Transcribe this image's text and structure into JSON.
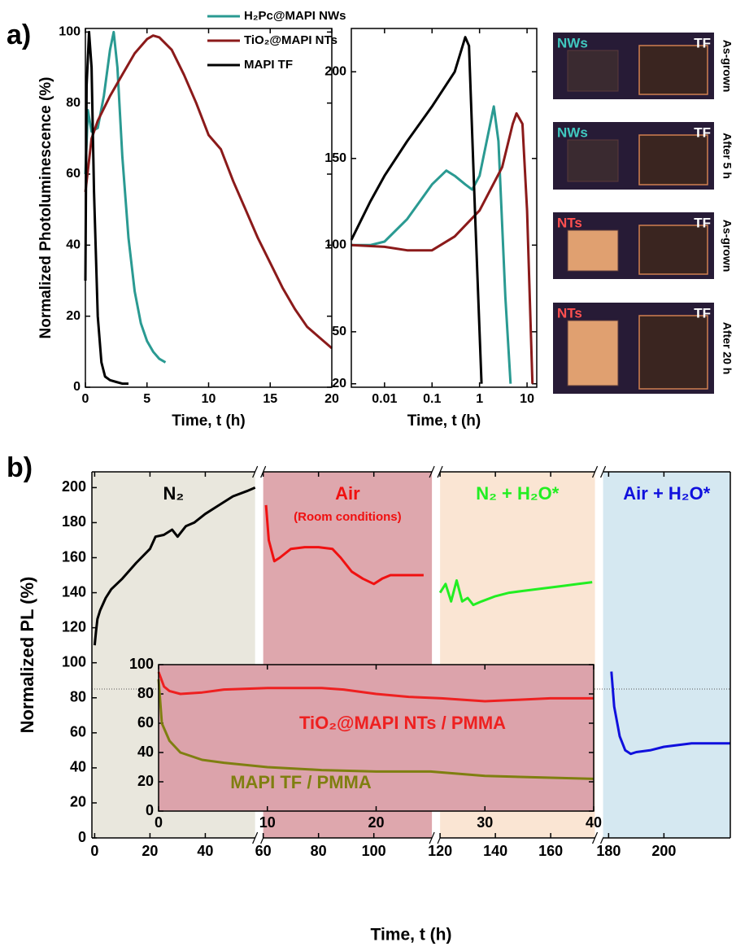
{
  "panel_labels": [
    "a)",
    "b)"
  ],
  "chart_data": [
    {
      "type": "line",
      "xlabel": "Time, t (h)",
      "ylabel": "Normalized Photoluminescence (%)",
      "xlim": [
        0,
        20
      ],
      "ylim": [
        0,
        101
      ],
      "xticks": [
        0,
        5,
        10,
        15,
        20
      ],
      "yticks": [
        0,
        20,
        40,
        60,
        80,
        100
      ],
      "legend": "top",
      "series": [
        {
          "name": "H₂Pc@MAPI NWs",
          "color": "#2a9a92",
          "x": [
            0,
            0.2,
            0.5,
            1,
            1.5,
            2,
            2.3,
            2.6,
            3,
            3.5,
            4,
            4.5,
            5,
            5.5,
            6,
            6.5
          ],
          "values": [
            60,
            78,
            72,
            73,
            82,
            95,
            100,
            90,
            65,
            42,
            27,
            18,
            13,
            10,
            8,
            7
          ]
        },
        {
          "name": "TiO₂@MAPI NTs",
          "color": "#8b1a1a",
          "x": [
            0,
            0.5,
            1,
            2,
            3,
            4,
            5,
            5.5,
            6,
            7,
            8,
            9,
            10,
            11,
            12,
            13,
            14,
            15,
            16,
            17,
            18,
            19,
            20
          ],
          "values": [
            55,
            70,
            75,
            82,
            88,
            94,
            98,
            99,
            98.5,
            95,
            88,
            80,
            71,
            67,
            58,
            50,
            42,
            35,
            28,
            22,
            17,
            14,
            11
          ]
        },
        {
          "name": "MAPI TF",
          "color": "#000000",
          "x": [
            0,
            0.1,
            0.3,
            0.5,
            0.7,
            1,
            1.3,
            1.6,
            2,
            2.5,
            3,
            3.5
          ],
          "values": [
            30,
            85,
            100,
            90,
            55,
            20,
            7,
            3,
            2,
            1.5,
            1,
            1
          ]
        }
      ]
    },
    {
      "type": "line",
      "xscale": "log",
      "xlabel": "Time, t (h)",
      "xlim": [
        0.002,
        16
      ],
      "ylim": [
        18,
        225
      ],
      "xticks": [
        0.01,
        0.1,
        1,
        10
      ],
      "yticks": [
        20,
        50,
        100,
        150,
        200
      ],
      "series": [
        {
          "color": "#2a9a92",
          "x": [
            0.002,
            0.005,
            0.01,
            0.03,
            0.1,
            0.2,
            0.3,
            0.5,
            0.7,
            1,
            2,
            2.5,
            3.5,
            4.5
          ],
          "values": [
            100,
            100,
            102,
            115,
            135,
            143,
            140,
            135,
            132,
            140,
            180,
            160,
            70,
            20
          ]
        },
        {
          "color": "#8b1a1a",
          "x": [
            0.002,
            0.01,
            0.03,
            0.1,
            0.3,
            1,
            3,
            5,
            6,
            8,
            10,
            13
          ],
          "values": [
            100,
            99,
            97,
            97,
            105,
            120,
            145,
            170,
            176,
            170,
            120,
            20
          ]
        },
        {
          "color": "#000000",
          "x": [
            0.002,
            0.005,
            0.01,
            0.03,
            0.1,
            0.3,
            0.5,
            0.6,
            0.8,
            1.1
          ],
          "values": [
            103,
            125,
            140,
            160,
            180,
            200,
            220,
            215,
            120,
            20
          ]
        }
      ]
    },
    {
      "type": "broken-line",
      "xlabel": "Time, t (h)",
      "ylabel": "Normalized PL (%)",
      "ylim": [
        0,
        209
      ],
      "yticks": [
        0,
        20,
        40,
        60,
        80,
        100,
        120,
        140,
        160,
        180,
        200
      ],
      "reference_line": 85,
      "segments": [
        {
          "xlim": [
            -1,
            58
          ],
          "xticks": [
            0,
            20,
            40
          ],
          "background": "#e9e7dd",
          "label": "N₂",
          "series": [
            {
              "color": "#000000",
              "x": [
                0,
                0.5,
                1,
                2,
                4,
                6,
                8,
                10,
                15,
                20,
                22,
                25,
                28,
                30,
                33,
                36,
                40,
                45,
                50,
                55,
                58
              ],
              "values": [
                110,
                118,
                125,
                130,
                137,
                142,
                145,
                148,
                157,
                165,
                172,
                173,
                176,
                172,
                178,
                180,
                185,
                190,
                195,
                198,
                200
              ]
            }
          ]
        },
        {
          "xlim": [
            60,
            121
          ],
          "xticks": [
            60,
            80,
            100
          ],
          "background": "#dea7ad",
          "label": "Air",
          "sublabel": "(Room conditions)",
          "series": [
            {
              "color": "#f01010",
              "x": [
                61,
                62,
                64,
                66,
                70,
                75,
                80,
                85,
                88,
                92,
                96,
                100,
                103,
                106,
                110,
                118
              ],
              "values": [
                190,
                170,
                158,
                160,
                165,
                166,
                166,
                165,
                160,
                152,
                148,
                145,
                148,
                150,
                150,
                150
              ]
            }
          ]
        },
        {
          "xlim": [
            120,
            176
          ],
          "xticks": [
            120,
            140,
            160
          ],
          "background": "#fae5d3",
          "label": "N₂ + H₂O*",
          "series": [
            {
              "color": "#22ee22",
              "x": [
                120,
                122,
                124,
                126,
                128,
                130,
                132,
                135,
                140,
                145,
                150,
                155,
                160,
                165,
                170,
                175
              ],
              "values": [
                140,
                145,
                135,
                147,
                135,
                137,
                133,
                135,
                138,
                140,
                141,
                142,
                143,
                144,
                145,
                146
              ]
            }
          ]
        },
        {
          "xlim": [
            178,
            224
          ],
          "xticks": [
            180,
            200
          ],
          "background": "#d5e8f1",
          "label": "Air + H₂O*",
          "series": [
            {
              "color": "#1010dd",
              "x": [
                181,
                182,
                184,
                186,
                188,
                190,
                195,
                200,
                205,
                210,
                215,
                220,
                224
              ],
              "values": [
                95,
                75,
                58,
                50,
                48,
                49,
                50,
                52,
                53,
                54,
                54,
                54,
                54
              ]
            }
          ]
        }
      ]
    },
    {
      "type": "line",
      "inset": true,
      "xlim": [
        0,
        40
      ],
      "ylim": [
        0,
        100
      ],
      "xticks": [
        0,
        10,
        20,
        30,
        40
      ],
      "yticks": [
        0,
        20,
        40,
        60,
        80,
        100
      ],
      "series": [
        {
          "name": "TiO₂@MAPI NTs / PMMA",
          "color": "#ee2020",
          "x": [
            0,
            0.5,
            1,
            2,
            4,
            6,
            10,
            15,
            17,
            20,
            23,
            26,
            30,
            33,
            36,
            40
          ],
          "values": [
            95,
            85,
            82,
            80,
            81,
            83,
            84,
            84,
            83,
            80,
            78,
            77,
            75,
            76,
            77,
            77
          ]
        },
        {
          "name": "MAPI TF / PMMA",
          "color": "#7f7f10",
          "x": [
            0,
            0.3,
            1,
            2,
            4,
            6,
            10,
            15,
            20,
            25,
            30,
            35,
            40
          ],
          "values": [
            90,
            60,
            48,
            40,
            35,
            33,
            30,
            28,
            27,
            27,
            24,
            23,
            22
          ]
        }
      ]
    }
  ],
  "photos": [
    {
      "left": "NWs",
      "right": "TF",
      "caption": "As-grown"
    },
    {
      "left": "NWs",
      "right": "TF",
      "caption": "After 5 h"
    },
    {
      "left": "NTs",
      "right": "TF",
      "caption": "As-grown"
    },
    {
      "left": "NTs",
      "right": "TF",
      "caption": "After 20 h"
    }
  ]
}
